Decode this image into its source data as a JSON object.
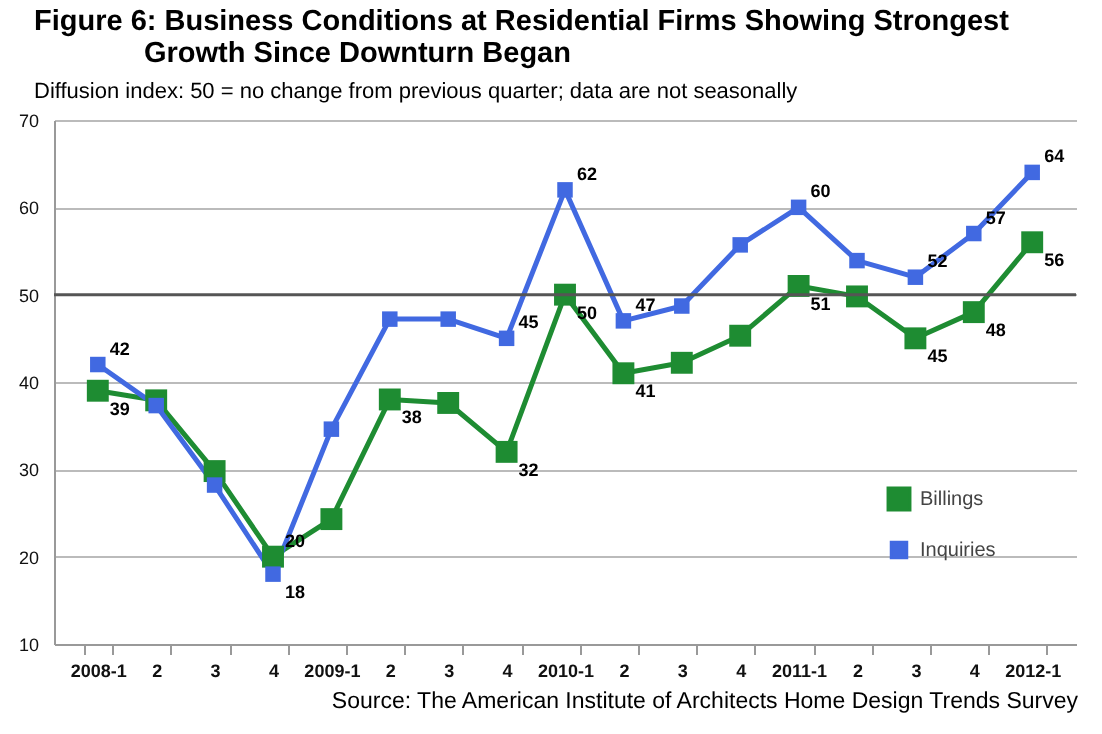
{
  "chart_data": {
    "type": "line",
    "title": "Figure 6: Business Conditions at Residential Firms Showing Strongest Growth Since Downturn Began",
    "subtitle": "Diffusion index: 50 = no change from previous quarter; data are not seasonally",
    "annotations": [
      "Source: The American Institute of Architects Home Design Trends Survey"
    ],
    "categories": [
      "2008-1",
      "2",
      "3",
      "4",
      "2009-1",
      "2",
      "3",
      "4",
      "2010-1",
      "2",
      "3",
      "4",
      "2011-1",
      "2",
      "3",
      "4",
      "2012-1"
    ],
    "series": [
      {
        "name": "Billings",
        "color": "#1e8c32",
        "values": [
          39,
          37.9,
          29.8,
          20,
          24.3,
          38,
          37.6,
          32,
          50,
          41,
          42.2,
          45.3,
          51,
          49.8,
          45,
          48,
          56
        ],
        "value_labels": [
          "39",
          null,
          null,
          "20",
          null,
          "38",
          null,
          "32",
          "50",
          "41",
          null,
          null,
          "51",
          null,
          "45",
          "48",
          "56"
        ]
      },
      {
        "name": "Inquiries",
        "color": "#4169e1",
        "values": [
          42,
          37.3,
          28.2,
          18,
          34.6,
          47.2,
          47.2,
          45,
          62,
          47,
          48.7,
          55.7,
          60,
          53.9,
          52,
          57,
          64
        ],
        "value_labels": [
          "42",
          null,
          null,
          "18",
          null,
          null,
          null,
          "45",
          "62",
          "47",
          null,
          null,
          "60",
          null,
          "52",
          "57",
          "64"
        ]
      }
    ],
    "ylim": [
      10,
      70
    ],
    "yticks": [
      10,
      20,
      30,
      40,
      50,
      60,
      70
    ],
    "grid": "y",
    "legend": "bottom right",
    "marker": "square",
    "line_style": "solid",
    "ref_lines": [
      {
        "axis": "y",
        "value": 50,
        "color": "#555555"
      }
    ]
  }
}
